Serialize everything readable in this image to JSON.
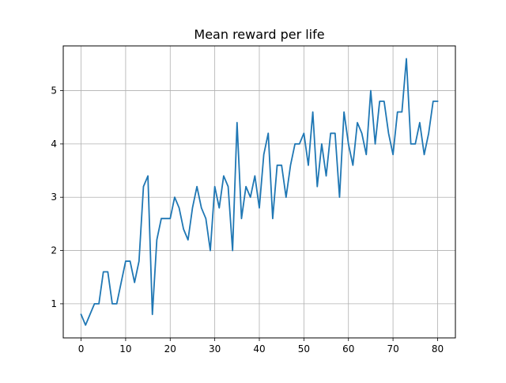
{
  "chart_data": {
    "type": "line",
    "title": "Mean reward per life",
    "xlabel": "",
    "ylabel": "",
    "xlim": [
      -4,
      84
    ],
    "ylim": [
      0.36,
      5.84
    ],
    "grid": true,
    "xticks": [
      0,
      10,
      20,
      30,
      40,
      50,
      60,
      70,
      80
    ],
    "yticks": [
      1,
      2,
      3,
      4,
      5
    ],
    "series": [
      {
        "color": "#1f77b4",
        "x": [
          0,
          1,
          2,
          3,
          4,
          5,
          6,
          7,
          8,
          9,
          10,
          11,
          12,
          13,
          14,
          15,
          16,
          17,
          18,
          19,
          20,
          21,
          22,
          23,
          24,
          25,
          26,
          27,
          28,
          29,
          30,
          31,
          32,
          33,
          34,
          35,
          36,
          37,
          38,
          39,
          40,
          41,
          42,
          43,
          44,
          45,
          46,
          47,
          48,
          49,
          50,
          51,
          52,
          53,
          54,
          55,
          56,
          57,
          58,
          59,
          60,
          61,
          62,
          63,
          64,
          65,
          66,
          67,
          68,
          69,
          70,
          71,
          72,
          73,
          74,
          75,
          76,
          77,
          78,
          79,
          80
        ],
        "values": [
          0.8,
          0.6,
          0.8,
          1.0,
          1.0,
          1.6,
          1.6,
          1.0,
          1.0,
          1.4,
          1.8,
          1.8,
          1.4,
          1.8,
          3.2,
          3.4,
          0.8,
          2.2,
          2.6,
          2.6,
          2.6,
          3.0,
          2.8,
          2.4,
          2.2,
          2.8,
          3.2,
          2.8,
          2.6,
          2.0,
          3.2,
          2.8,
          3.4,
          3.2,
          2.0,
          4.4,
          2.6,
          3.2,
          3.0,
          3.4,
          2.8,
          3.8,
          4.2,
          2.6,
          3.6,
          3.6,
          3.0,
          3.6,
          4.0,
          4.0,
          4.2,
          3.6,
          4.6,
          3.2,
          4.0,
          3.4,
          4.2,
          4.2,
          3.0,
          4.6,
          4.0,
          3.6,
          4.4,
          4.2,
          3.8,
          5.0,
          4.0,
          4.8,
          4.8,
          4.2,
          3.8,
          4.6,
          4.6,
          5.6,
          4.0,
          4.0,
          4.4,
          3.8,
          4.2,
          4.8,
          4.8
        ]
      }
    ]
  }
}
